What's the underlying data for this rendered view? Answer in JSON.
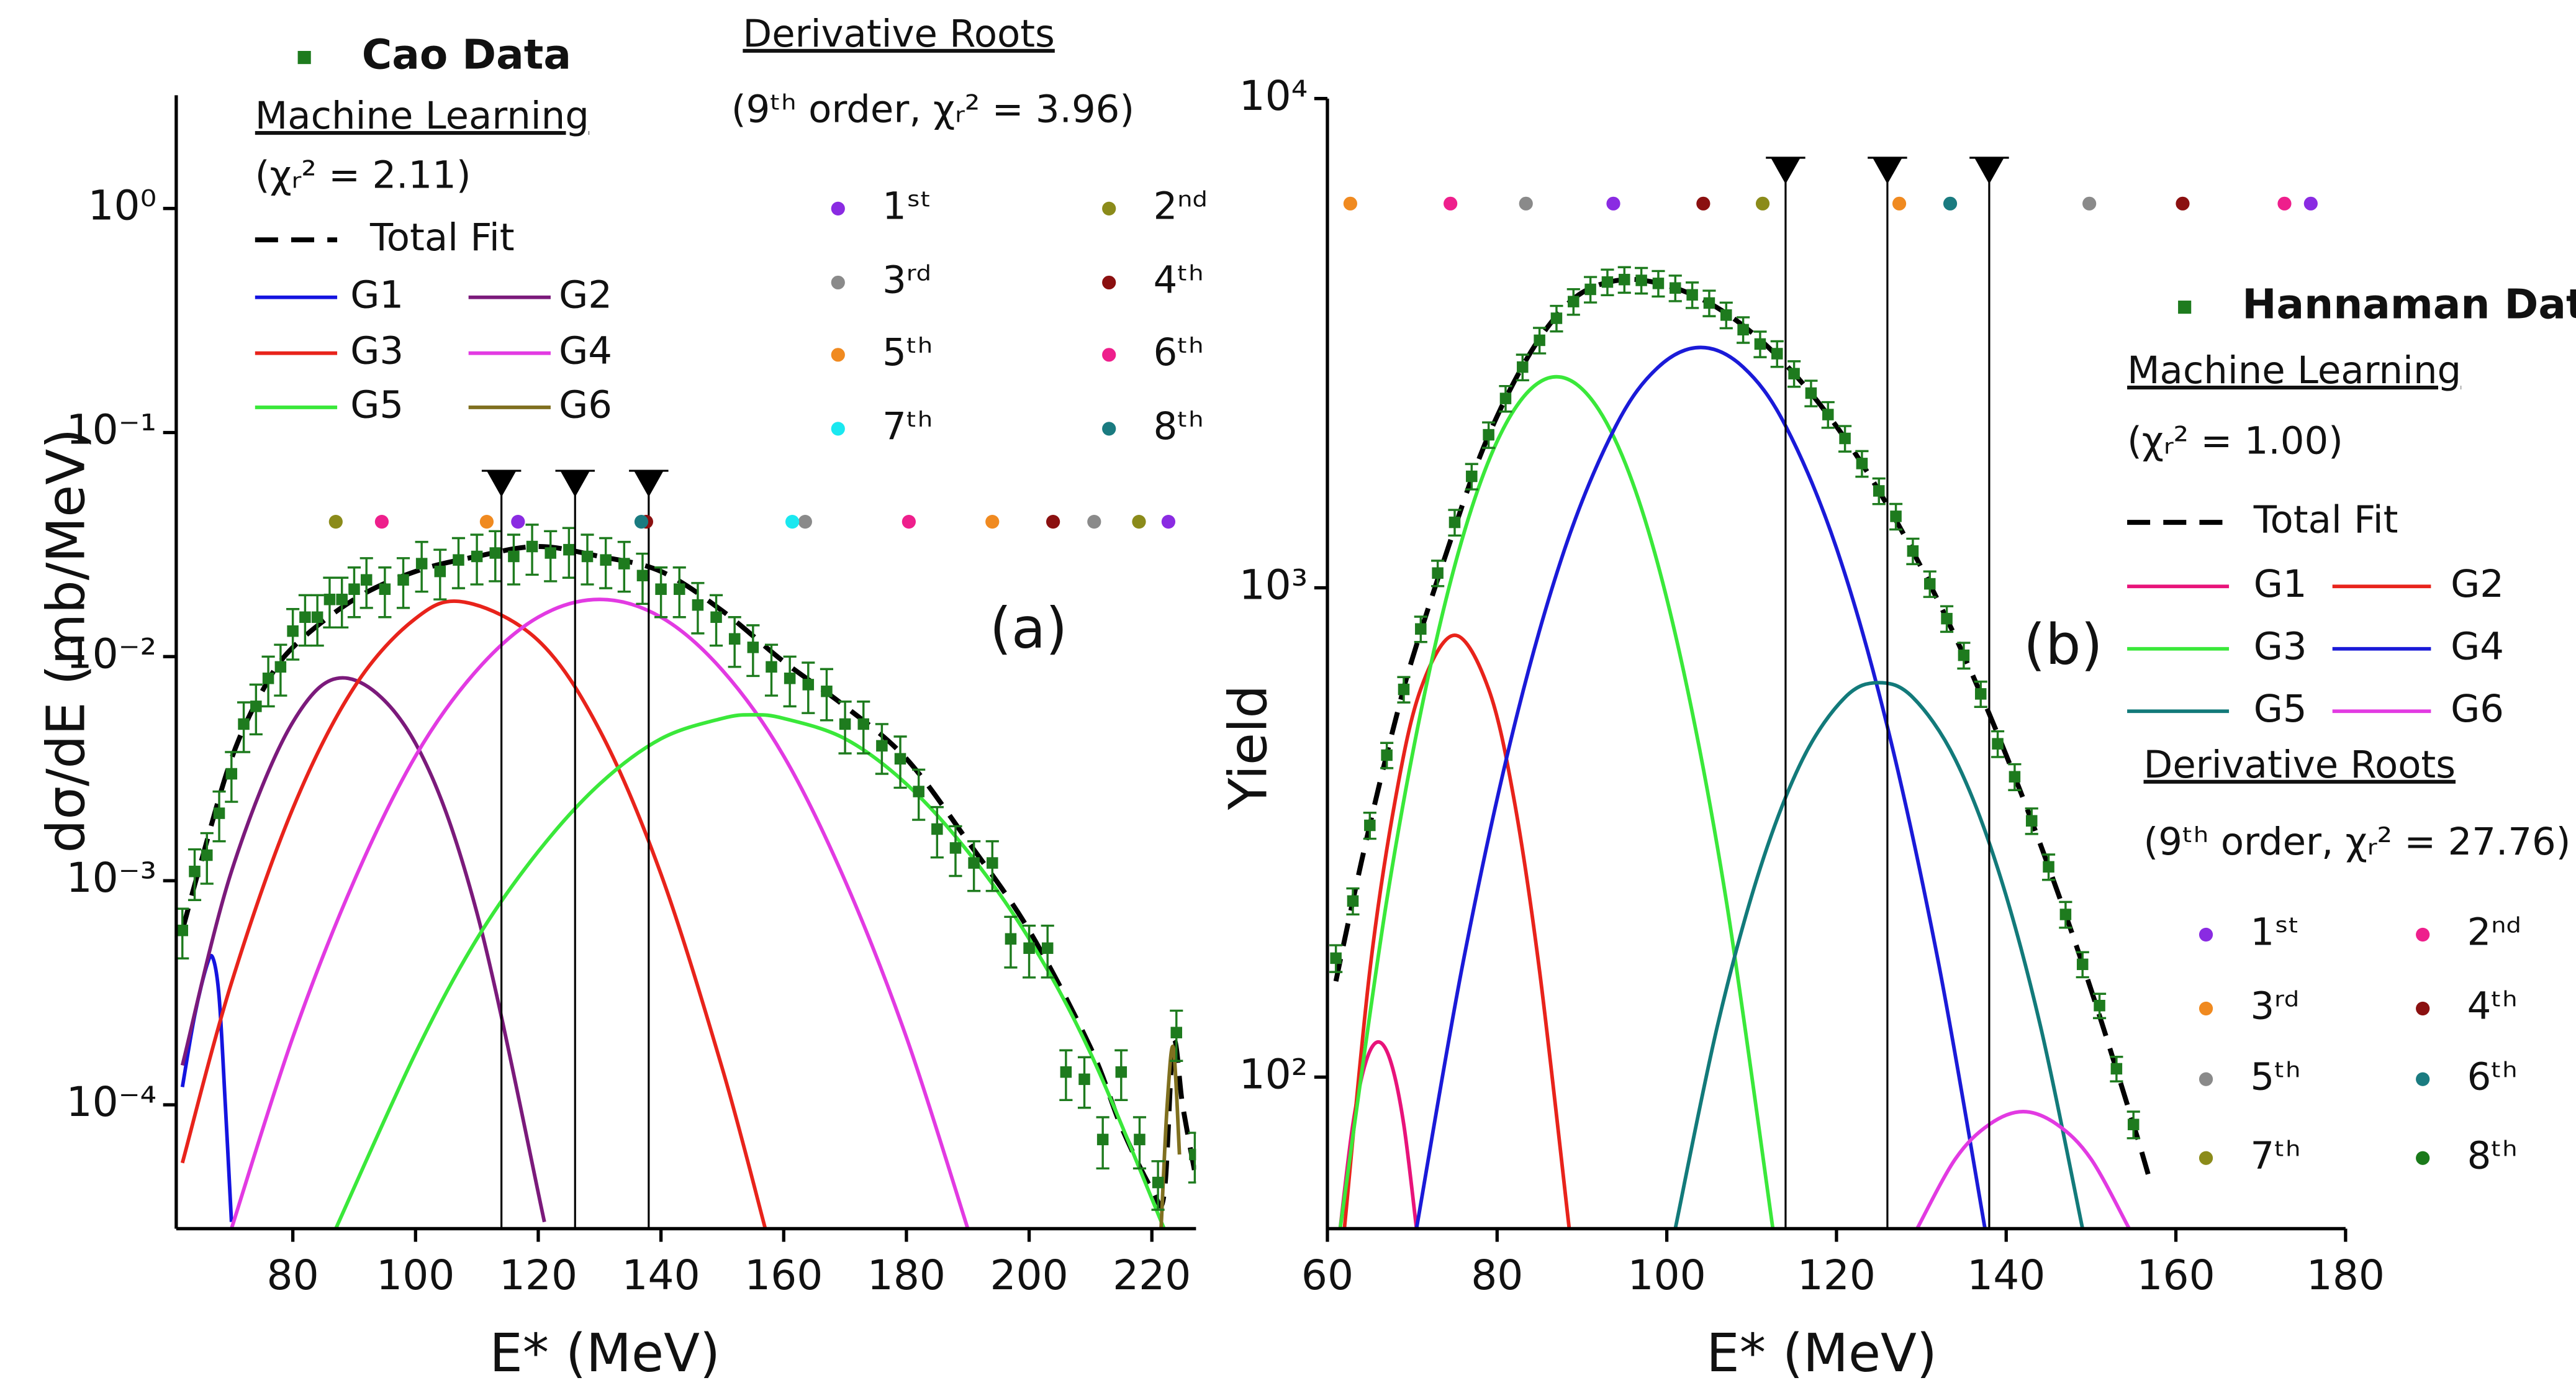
{
  "chart_data": [
    {
      "type": "line",
      "panel_label": "(a)",
      "xlabel": "E* (MeV)",
      "ylabel": "dσ/dE (mb/MeV)",
      "xlim": [
        61,
        227.2
      ],
      "xticks": [
        80,
        100,
        120,
        140,
        160,
        180,
        200,
        220
      ],
      "ylim": [
        2.8e-05,
        3.2
      ],
      "yscale": "log",
      "yticks": [
        {
          "value": 0.0001,
          "label": "10⁻⁴"
        },
        {
          "value": 0.001,
          "label": "10⁻³"
        },
        {
          "value": 0.01,
          "label": "10⁻²"
        },
        {
          "value": 0.1,
          "label": "10⁻¹"
        },
        {
          "value": 1,
          "label": "10⁰"
        }
      ],
      "data": {
        "name": "Cao Data",
        "color": "#1e7b1e",
        "x": [
          62,
          64,
          66,
          68,
          70,
          72,
          74,
          76,
          78,
          80,
          82,
          84,
          86,
          88,
          90,
          92,
          95,
          98,
          101,
          104,
          107,
          110,
          113,
          116,
          119,
          122,
          125,
          128,
          131,
          134,
          137,
          140,
          143,
          146,
          149,
          152,
          155,
          158,
          161,
          164,
          167,
          170,
          173,
          176,
          179,
          182,
          185,
          188,
          191,
          194,
          197,
          200,
          203,
          206,
          209,
          212,
          215,
          218,
          221,
          224,
          227
        ],
        "values": [
          0.0006,
          0.0011,
          0.0013,
          0.002,
          0.003,
          0.005,
          0.006,
          0.008,
          0.009,
          0.013,
          0.015,
          0.015,
          0.018,
          0.018,
          0.02,
          0.022,
          0.02,
          0.022,
          0.026,
          0.024,
          0.027,
          0.028,
          0.029,
          0.028,
          0.031,
          0.029,
          0.03,
          0.028,
          0.027,
          0.026,
          0.023,
          0.02,
          0.02,
          0.017,
          0.015,
          0.012,
          0.011,
          0.009,
          0.008,
          0.0075,
          0.007,
          0.005,
          0.005,
          0.004,
          0.0035,
          0.0025,
          0.0017,
          0.0014,
          0.0012,
          0.0012,
          0.00055,
          0.0005,
          0.0005,
          0.00014,
          0.00013,
          7e-05,
          0.00014,
          7e-05,
          4.5e-05,
          0.00021,
          6e-05
        ],
        "errors": [
          0.00015,
          0.00028,
          0.00033,
          0.0005,
          0.00075,
          0.00125,
          0.0015,
          0.002,
          0.0023,
          0.0033,
          0.0038,
          0.0038,
          0.0045,
          0.0045,
          0.005,
          0.0055,
          0.005,
          0.0055,
          0.0065,
          0.006,
          0.0068,
          0.007,
          0.0073,
          0.007,
          0.0078,
          0.0073,
          0.0075,
          0.007,
          0.0068,
          0.0065,
          0.0058,
          0.005,
          0.005,
          0.0043,
          0.0038,
          0.003,
          0.0028,
          0.0023,
          0.002,
          0.0019,
          0.0018,
          0.0013,
          0.0013,
          0.001,
          0.0009,
          0.00063,
          0.00043,
          0.00035,
          0.0003,
          0.0003,
          0.00014,
          0.00013,
          0.00013,
          3.5e-05,
          3.3e-05,
          1.8e-05,
          3.5e-05,
          1.8e-05,
          1.1e-05,
          5.3e-05,
          1.5e-05
        ]
      },
      "method": "Machine Learning",
      "fit_chi": "(χᵣ² = 2.11)",
      "series": [
        {
          "name": "Total Fit",
          "color": "#000000",
          "dash": true,
          "x": [
            62,
            65,
            70,
            75,
            80,
            90,
            100,
            110,
            120,
            130,
            140,
            150,
            160,
            170,
            180,
            190,
            200,
            210,
            215,
            220,
            222,
            223.5,
            225,
            227
          ],
          "values": [
            0.0006,
            0.0012,
            0.0035,
            0.007,
            0.011,
            0.018,
            0.024,
            0.028,
            0.031,
            0.028,
            0.024,
            0.016,
            0.0095,
            0.006,
            0.0035,
            0.0015,
            0.0006,
            0.00018,
            8e-05,
            4.2e-05,
            4e-05,
            0.00019,
            0.0001,
            5e-05
          ]
        },
        {
          "name": "G1",
          "color": "#1414e0",
          "dash": false,
          "x": [
            62,
            64,
            66,
            67,
            68,
            69,
            70
          ],
          "values": [
            0.00012,
            0.00025,
            0.00042,
            0.00045,
            0.0003,
            0.0001,
            3e-05
          ]
        },
        {
          "name": "G2",
          "color": "#7b1a7b",
          "dash": false,
          "x": [
            62,
            70,
            80,
            89,
            100,
            110,
            121
          ],
          "values": [
            0.00015,
            0.0011,
            0.0051,
            0.008,
            0.0041,
            0.00072,
            3e-05
          ]
        },
        {
          "name": "G3",
          "color": "#e8231b",
          "dash": false,
          "x": [
            62,
            70,
            80,
            90,
            100,
            108,
            120,
            130,
            140,
            150,
            157
          ],
          "values": [
            5.5e-05,
            0.00035,
            0.0021,
            0.0073,
            0.0148,
            0.0175,
            0.0118,
            0.0047,
            0.00107,
            0.000145,
            2.8e-05
          ]
        },
        {
          "name": "G4",
          "color": "#e23ae2",
          "dash": false,
          "x": [
            70,
            80,
            90,
            100,
            110,
            120,
            130,
            140,
            150,
            160,
            170,
            180,
            190
          ],
          "values": [
            2.8e-05,
            0.0002,
            0.001,
            0.0036,
            0.0087,
            0.015,
            0.018,
            0.015,
            0.0087,
            0.0036,
            0.001,
            0.0002,
            2.8e-05
          ]
        },
        {
          "name": "G5",
          "color": "#3ae83a",
          "dash": false,
          "x": [
            87,
            100,
            110,
            120,
            130,
            140,
            150,
            155,
            160,
            170,
            180,
            190,
            200,
            210,
            222
          ],
          "values": [
            2.8e-05,
            0.00017,
            0.00055,
            0.00135,
            0.0027,
            0.0043,
            0.0053,
            0.0055,
            0.0053,
            0.0043,
            0.0027,
            0.00135,
            0.00055,
            0.00017,
            2.8e-05
          ]
        },
        {
          "name": "G6",
          "color": "#807020",
          "dash": false,
          "x": [
            221.5,
            222.5,
            223.5,
            224.5
          ],
          "values": [
            2.8e-05,
            0.0001,
            0.00018,
            6e-05
          ]
        }
      ],
      "markers": {
        "x": [
          114,
          126,
          138
        ],
        "y": 0.058
      },
      "roots_title": "Derivative Roots",
      "roots_note": "(9ᵗʰ order, χᵣ² = 3.96)",
      "roots_y": 0.04,
      "roots": [
        {
          "name": "1ˢᵗ",
          "color": "#8a2be2",
          "x": [
            116.7,
            222.7
          ]
        },
        {
          "name": "2ⁿᵈ",
          "color": "#8b8b1a",
          "x": [
            87,
            217.9
          ]
        },
        {
          "name": "3ʳᵈ",
          "color": "#8a8a8a",
          "x": [
            163.5,
            210.6
          ]
        },
        {
          "name": "4ᵗʰ",
          "color": "#8b1010",
          "x": [
            137.6,
            203.9
          ]
        },
        {
          "name": "5ᵗʰ",
          "color": "#f08a20",
          "x": [
            111.6,
            194
          ]
        },
        {
          "name": "6ᵗʰ",
          "color": "#ee1f8c",
          "x": [
            94.5,
            180.4
          ]
        },
        {
          "name": "7ᵗʰ",
          "color": "#1ae8f0",
          "x": [
            161.4
          ]
        },
        {
          "name": "8ᵗʰ",
          "color": "#1a7b80",
          "x": [
            136.8
          ]
        }
      ]
    },
    {
      "type": "line",
      "panel_label": "(b)",
      "xlabel": "E* (MeV)",
      "ylabel": "Yield",
      "xlim": [
        60,
        180
      ],
      "xticks": [
        60,
        80,
        100,
        120,
        140,
        160,
        180
      ],
      "ylim": [
        49,
        10000
      ],
      "yscale": "log",
      "yticks": [
        {
          "value": 100,
          "label": "10²"
        },
        {
          "value": 1000,
          "label": "10³"
        },
        {
          "value": 10000,
          "label": "10⁴"
        }
      ],
      "data": {
        "name": "Hannaman Data",
        "color": "#1e7b1e",
        "x": [
          61,
          63,
          65,
          67,
          69,
          71,
          73,
          75,
          77,
          79,
          81,
          83,
          85,
          87,
          89,
          91,
          93,
          95,
          97,
          99,
          101,
          103,
          105,
          107,
          109,
          111,
          113,
          115,
          117,
          119,
          121,
          123,
          125,
          127,
          129,
          131,
          133,
          135,
          137,
          139,
          141,
          143,
          145,
          147,
          149,
          151,
          153,
          155
        ],
        "values": [
          175,
          229,
          327,
          455,
          620,
          824,
          1072,
          1361,
          1690,
          2055,
          2438,
          2826,
          3206,
          3556,
          3846,
          4074,
          4217,
          4266,
          4250,
          4190,
          4100,
          3970,
          3820,
          3610,
          3370,
          3150,
          3010,
          2740,
          2500,
          2260,
          2020,
          1795,
          1578,
          1400,
          1189,
          1019,
          865,
          728,
          607,
          480,
          411,
          334,
          269,
          215,
          170,
          140,
          104,
          80
        ],
        "errors": [
          11,
          14,
          20,
          27,
          37,
          49,
          64,
          82,
          101,
          123,
          146,
          170,
          192,
          213,
          231,
          244,
          253,
          256,
          255,
          251,
          246,
          238,
          229,
          217,
          202,
          189,
          181,
          164,
          150,
          136,
          121,
          108,
          95,
          84,
          71,
          61,
          52,
          44,
          36,
          29,
          25,
          20,
          16,
          13,
          10,
          8,
          6,
          5
        ]
      },
      "method": "Machine Learning",
      "fit_chi": "(χᵣ² = 1.00)",
      "series": [
        {
          "name": "Total Fit",
          "color": "#000000",
          "dash": true,
          "x": [
            61,
            62,
            64,
            66,
            68,
            70,
            74,
            78,
            82,
            86,
            90,
            95,
            100,
            105,
            110,
            115,
            120,
            125,
            130,
            135,
            140,
            145,
            150,
            155,
            157
          ],
          "values": [
            157,
            190,
            275,
            388,
            535,
            716,
            1175,
            1860,
            2636,
            3420,
            4010,
            4266,
            4150,
            3820,
            3327,
            2740,
            2138,
            1578,
            1100,
            728,
            455,
            269,
            151,
            80,
            61
          ]
        },
        {
          "name": "G1",
          "color": "#e8137a",
          "dash": false,
          "x": [
            61.5,
            63,
            64.5,
            66,
            67.5,
            69,
            70.5
          ],
          "values": [
            49,
            80,
            107,
            118,
            107,
            80,
            49
          ]
        },
        {
          "name": "G2",
          "color": "#e8231b",
          "dash": false,
          "x": [
            62,
            65,
            68,
            71,
            75,
            79,
            82,
            85,
            88.5
          ],
          "values": [
            49,
            165,
            369,
            621,
            800,
            621,
            369,
            165,
            49
          ]
        },
        {
          "name": "G3",
          "color": "#3ae83a",
          "dash": false,
          "x": [
            61.5,
            67,
            72,
            77,
            82,
            87,
            92,
            97,
            102,
            107,
            112.5
          ],
          "values": [
            49,
            230,
            673,
            1455,
            2310,
            2700,
            2310,
            1455,
            673,
            230,
            49
          ]
        },
        {
          "name": "G4",
          "color": "#1a1ad8",
          "dash": false,
          "x": [
            70.5,
            76,
            82,
            88,
            94,
            99,
            104,
            109,
            114,
            120,
            126,
            132,
            137.5
          ],
          "values": [
            49,
            172,
            520,
            1205,
            2143,
            2826,
            3100,
            2826,
            2143,
            1205,
            520,
            172,
            49
          ]
        },
        {
          "name": "G5",
          "color": "#127a7a",
          "dash": false,
          "x": [
            101,
            106,
            111,
            116,
            121,
            125,
            129,
            134,
            139,
            144,
            149
          ],
          "values": [
            49,
            128,
            267,
            446,
            597,
            640,
            597,
            446,
            267,
            128,
            49
          ]
        },
        {
          "name": "G6",
          "color": "#e23ae2",
          "dash": false,
          "x": [
            129.5,
            134,
            138,
            142,
            146,
            150,
            154.5
          ],
          "values": [
            49,
            68,
            80,
            85,
            80,
            68,
            49
          ]
        }
      ],
      "markers": {
        "x": [
          114,
          126,
          138
        ],
        "y": 7060
      },
      "roots_title": "Derivative Roots",
      "roots_note": "(9ᵗʰ order, χᵣ² = 27.76)",
      "roots_y": 6100,
      "roots": [
        {
          "name": "1ˢᵗ",
          "color": "#8a2be2",
          "x": [
            93.7,
            175.9
          ]
        },
        {
          "name": "2ⁿᵈ",
          "color": "#ee1f8c",
          "x": [
            74.5,
            172.8
          ]
        },
        {
          "name": "3ʳᵈ",
          "color": "#f08a20",
          "x": [
            62.7,
            127.4
          ]
        },
        {
          "name": "4ᵗʰ",
          "color": "#8b1010",
          "x": [
            104.3,
            160.8
          ]
        },
        {
          "name": "5ᵗʰ",
          "color": "#8a8a8a",
          "x": [
            83.4,
            149.8
          ]
        },
        {
          "name": "6ᵗʰ",
          "color": "#1a7b80",
          "x": [
            133.4
          ]
        },
        {
          "name": "7ᵗʰ",
          "color": "#8b8b1a",
          "x": [
            111.3
          ]
        },
        {
          "name": "8ᵗʰ",
          "color": "#1a7a1a",
          "x": []
        }
      ]
    }
  ]
}
